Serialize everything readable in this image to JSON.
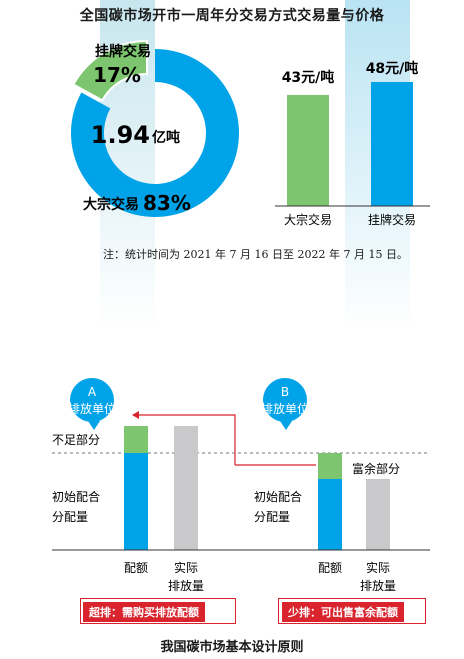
{
  "title": "全国碳市场开市一周年分交易方式交易量与价格",
  "note": "注：统计时间为 2021 年 7 月 16 日至 2022 年 7 月 15 日。",
  "colors": {
    "blue": "#00a2e8",
    "green": "#7dc56f",
    "gray": "#c9c9cb",
    "red": "#d9232d",
    "text": "#1a1a1a"
  },
  "chart_data": [
    {
      "type": "pie",
      "center_label": {
        "value": "1.94",
        "unit": "亿吨"
      },
      "slices": [
        {
          "name": "大宗交易",
          "value": 83,
          "label": "83%",
          "color": "#00a2e8"
        },
        {
          "name": "挂牌交易",
          "value": 17,
          "label": "17%",
          "color": "#7dc56f"
        }
      ]
    },
    {
      "type": "bar",
      "categories": [
        "大宗交易",
        "挂牌交易"
      ],
      "values": [
        43,
        48
      ],
      "data_labels": [
        "43元/吨",
        "48元/吨"
      ],
      "colors": [
        "#7dc56f",
        "#00a2e8"
      ],
      "ylim": [
        0,
        48
      ]
    }
  ],
  "diagram": {
    "title": "我国碳市场基本设计原则",
    "unit_a": {
      "letter": "A",
      "label": "排放单位"
    },
    "unit_b": {
      "letter": "B",
      "label": "排放单位"
    },
    "labels": {
      "shortfall": "不足部分",
      "surplus": "富余部分",
      "initial_a": [
        "初始配合",
        "分配量"
      ],
      "initial_b": [
        "初始配合",
        "分配量"
      ],
      "quota": "配额",
      "actual": [
        "实际",
        "排放量"
      ]
    },
    "callouts": {
      "a": "超排：需购买排放配额",
      "b": "少排：可出售富余配额"
    }
  }
}
